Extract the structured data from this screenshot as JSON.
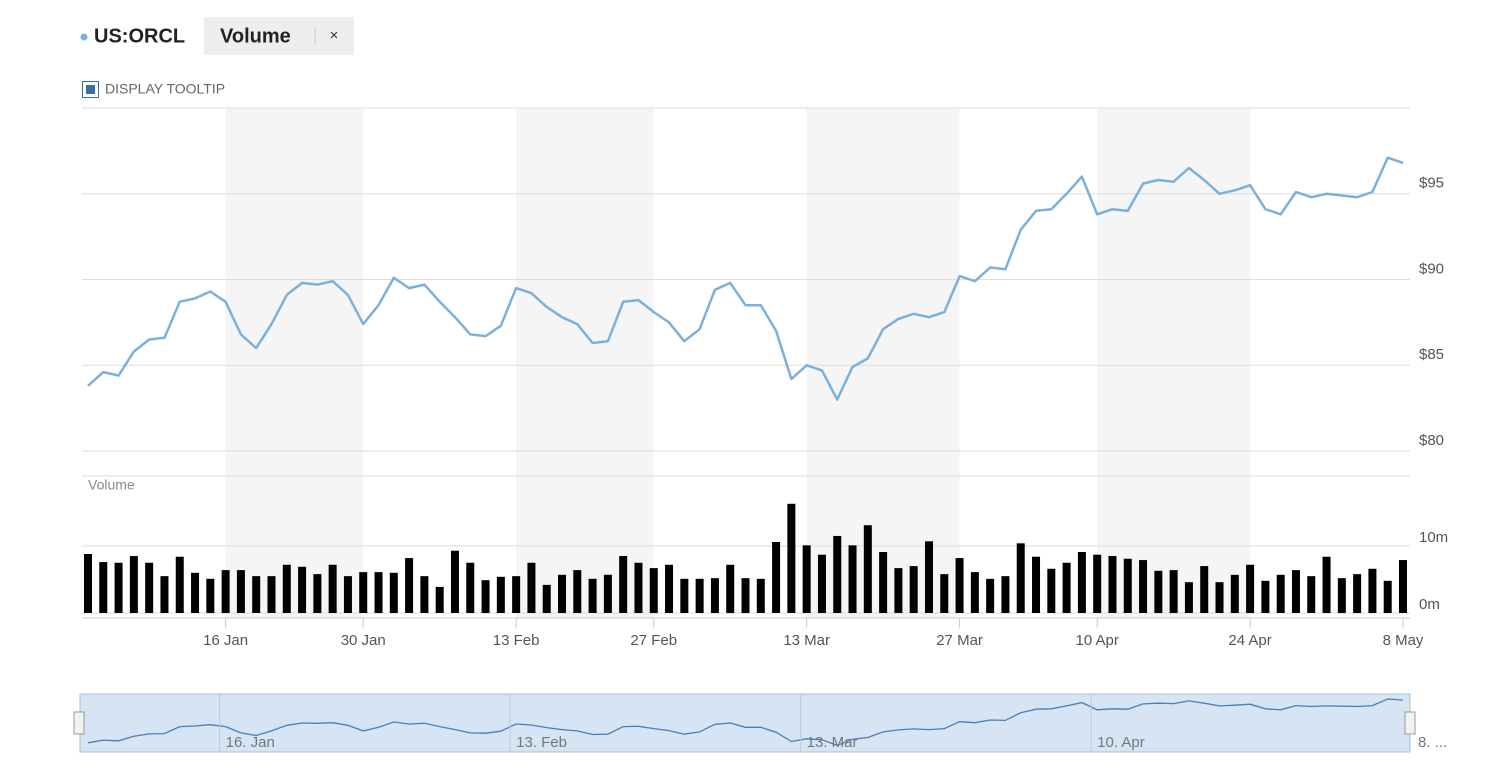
{
  "legend": {
    "close": "×"
  },
  "tooltip_toggle": "DISPLAY TOOLTIP",
  "chart_data": [
    {
      "type": "line",
      "categories": [
        null,
        null,
        null,
        null,
        null,
        null,
        null,
        null,
        null,
        "16 Jan",
        null,
        null,
        null,
        null,
        null,
        null,
        null,
        null,
        "30 Jan",
        null,
        null,
        null,
        null,
        null,
        null,
        null,
        null,
        null,
        "13 Feb",
        null,
        null,
        null,
        null,
        null,
        null,
        null,
        null,
        "27 Feb",
        null,
        null,
        null,
        null,
        null,
        null,
        null,
        null,
        null,
        "13 Mar",
        null,
        null,
        null,
        null,
        null,
        null,
        null,
        null,
        null,
        "27 Mar",
        null,
        null,
        null,
        null,
        null,
        null,
        null,
        null,
        "10 Apr",
        null,
        null,
        null,
        null,
        null,
        null,
        null,
        null,
        null,
        "24 Apr",
        null,
        null,
        null,
        null,
        null,
        null,
        null,
        null,
        null,
        "8 May"
      ],
      "series": [
        {
          "name": "US:ORCL",
          "color": "#7cb0dc",
          "values": [
            83.8,
            84.6,
            84.4,
            85.8,
            86.5,
            86.6,
            88.7,
            88.9,
            89.3,
            88.7,
            86.8,
            86.0,
            87.4,
            89.1,
            89.8,
            89.7,
            89.9,
            89.1,
            87.4,
            88.5,
            90.1,
            89.5,
            89.7,
            88.7,
            87.8,
            86.8,
            86.7,
            87.3,
            89.5,
            89.2,
            88.4,
            87.8,
            87.4,
            86.3,
            86.4,
            88.7,
            88.8,
            88.1,
            87.5,
            86.4,
            87.1,
            89.4,
            89.8,
            88.5,
            88.5,
            87.0,
            84.2,
            85.0,
            84.7,
            83.0,
            84.9,
            85.4,
            87.1,
            87.7,
            88.0,
            87.8,
            88.1,
            90.2,
            89.9,
            90.7,
            90.6,
            92.9,
            94.0,
            94.1,
            95.0,
            96.0,
            93.8,
            94.1,
            94.0,
            95.6,
            95.8,
            95.7,
            96.5,
            95.8,
            95.0,
            95.2,
            95.5,
            94.1,
            93.8,
            95.1,
            94.8,
            95.0,
            94.9,
            94.8,
            95.1,
            97.1,
            96.8
          ]
        }
      ],
      "ylim": [
        80,
        100
      ],
      "yticks": [
        {
          "value": 80,
          "label": "$80"
        },
        {
          "value": 85,
          "label": "$85"
        },
        {
          "value": 90,
          "label": "$90"
        },
        {
          "value": 95,
          "label": "$95"
        }
      ],
      "grid": true
    },
    {
      "type": "bar",
      "title": "Volume",
      "series": [
        {
          "name": "Volume",
          "color": "#000000",
          "values": [
            8.8,
            7.6,
            7.5,
            8.5,
            7.5,
            5.5,
            8.4,
            6.0,
            5.1,
            6.4,
            6.4,
            5.5,
            5.5,
            7.2,
            6.9,
            5.8,
            7.2,
            5.5,
            6.1,
            6.1,
            6.0,
            8.2,
            5.5,
            3.9,
            9.3,
            7.5,
            4.9,
            5.4,
            5.5,
            7.5,
            4.2,
            5.7,
            6.4,
            5.1,
            5.7,
            8.5,
            7.5,
            6.7,
            7.2,
            5.1,
            5.1,
            5.2,
            7.2,
            5.2,
            5.1,
            10.6,
            16.3,
            10.1,
            8.7,
            11.5,
            10.1,
            13.1,
            9.1,
            6.7,
            7.0,
            10.7,
            5.8,
            8.2,
            6.1,
            5.1,
            5.5,
            10.4,
            8.4,
            6.6,
            7.5,
            9.1,
            8.7,
            8.5,
            8.1,
            7.9,
            6.3,
            6.4,
            4.6,
            7.0,
            4.6,
            5.7,
            7.2,
            4.8,
            5.7,
            6.4,
            5.5,
            8.4,
            5.2,
            5.8,
            6.6,
            4.8,
            7.9
          ]
        }
      ],
      "ylim": [
        0,
        20
      ],
      "yticks": [
        {
          "value": 0,
          "label": "0m"
        },
        {
          "value": 10,
          "label": "10m"
        }
      ],
      "grid": true
    }
  ],
  "navigator": {
    "labels": [
      "16. Jan",
      "13. Feb",
      "13. Mar",
      "10. Apr",
      "8. ..."
    ]
  }
}
